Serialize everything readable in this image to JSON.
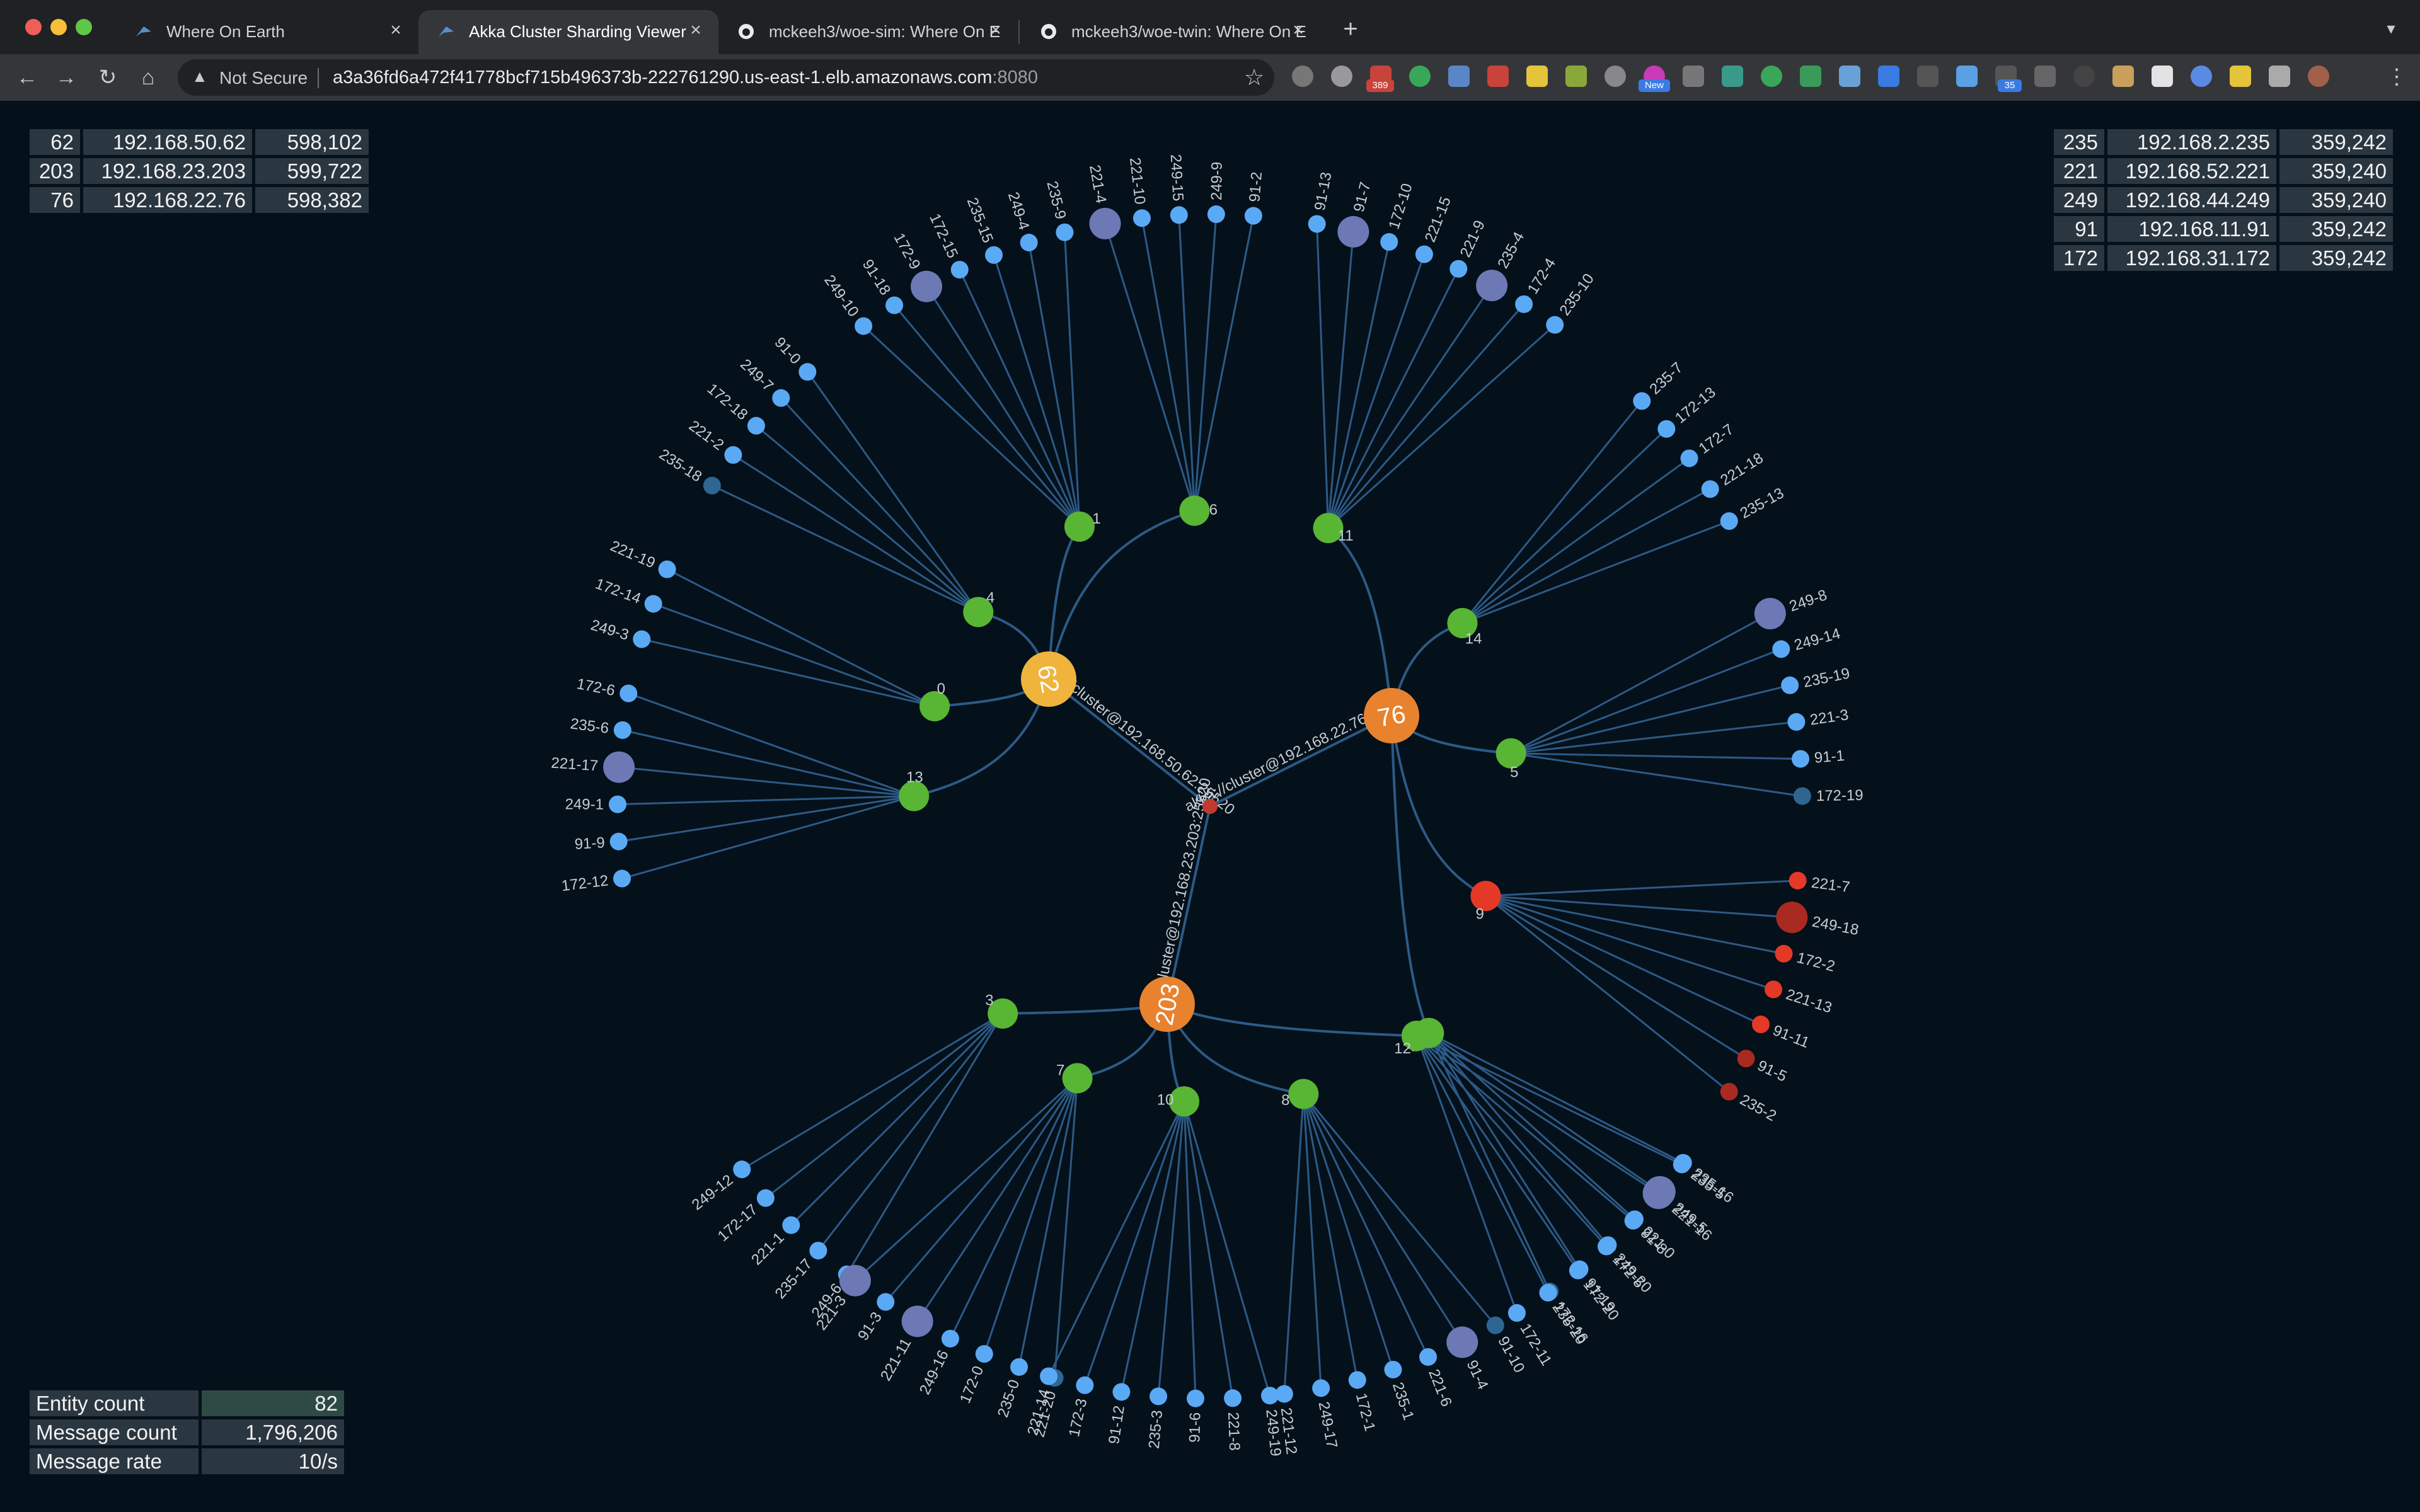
{
  "browser": {
    "tabs": [
      {
        "title": "Where On Earth",
        "active": false,
        "icon": "akka-icon"
      },
      {
        "title": "Akka Cluster Sharding Viewer",
        "active": true,
        "icon": "akka-icon"
      },
      {
        "title": "mckeeh3/woe-sim: Where On E",
        "active": false,
        "icon": "github-icon"
      },
      {
        "title": "mckeeh3/woe-twin: Where On E",
        "active": false,
        "icon": "github-icon"
      }
    ],
    "security": "Not Secure",
    "url_host": "a3a36fd6a472f41778bcf715b496373b-222761290.us-east-1.elb.amazonaws.com",
    "url_port": ":8080",
    "badges": {
      "mail": "389",
      "new": "New",
      "count": "35"
    }
  },
  "colors": {
    "leaf": "#5aa9f5",
    "leaf_dim": "#2e6691",
    "leaf_busy": "#6c79b4",
    "shard": "#59b534",
    "red": "#e53928",
    "red_dark": "#a82a20",
    "node62": "#f0b33c",
    "node76": "#e8822f",
    "node203": "#e8822f",
    "link": "#2c5a86"
  },
  "nodes_left": [
    {
      "id": "62",
      "ip": "192.168.50.62",
      "count": "598,102"
    },
    {
      "id": "203",
      "ip": "192.168.23.203",
      "count": "599,722"
    },
    {
      "id": "76",
      "ip": "192.168.22.76",
      "count": "598,382"
    }
  ],
  "nodes_right": [
    {
      "id": "235",
      "ip": "192.168.2.235",
      "count": "359,242"
    },
    {
      "id": "221",
      "ip": "192.168.52.221",
      "count": "359,240"
    },
    {
      "id": "249",
      "ip": "192.168.44.249",
      "count": "359,240"
    },
    {
      "id": "91",
      "ip": "192.168.11.91",
      "count": "359,242"
    },
    {
      "id": "172",
      "ip": "192.168.31.172",
      "count": "359,242"
    }
  ],
  "stats": [
    {
      "label": "Entity count",
      "value": "82"
    },
    {
      "label": "Message count",
      "value": "1,796,206"
    },
    {
      "label": "Message rate",
      "value": "10/s"
    }
  ],
  "graph": {
    "links": [
      "akka://cluster@192.168.50.62:25520",
      "akka://cluster@192.168.22.76:25520",
      "akka://cluster@192.168.23.203:25520"
    ],
    "cluster_nodes": [
      {
        "label": "62",
        "kind": "node62",
        "shards": [
          {
            "label": "1",
            "entities": [
              "249-10",
              "91-18",
              "172-9",
              "172-15",
              "235-15",
              "249-4",
              "235-9"
            ],
            "busy": [
              "172-9"
            ]
          },
          {
            "label": "6",
            "entities": [
              "221-4",
              "221-10",
              "249-15",
              "249-9",
              "91-2"
            ],
            "busy": [
              "221-4"
            ]
          },
          {
            "label": "4",
            "entities": [
              "235-18",
              "221-2",
              "172-18",
              "249-7",
              "91-0"
            ],
            "dim": [
              "235-18"
            ]
          },
          {
            "label": "0",
            "entities": [
              "249-3",
              "172-14",
              "221-19"
            ]
          },
          {
            "label": "13",
            "entities": [
              "172-12",
              "91-9",
              "249-1",
              "221-17",
              "235-6",
              "172-6"
            ],
            "busy": [
              "221-17"
            ]
          }
        ]
      },
      {
        "label": "76",
        "kind": "node76",
        "shards": [
          {
            "label": "11",
            "entities": [
              "91-13",
              "91-7",
              "172-10",
              "221-15",
              "221-9",
              "235-4",
              "172-4",
              "235-10"
            ],
            "busy": [
              "91-7",
              "235-4"
            ]
          },
          {
            "label": "14",
            "entities": [
              "235-7",
              "172-13",
              "172-7",
              "221-18",
              "235-13"
            ]
          },
          {
            "label": "5",
            "entities": [
              "249-8",
              "249-14",
              "235-19",
              "221-3",
              "91-1",
              "172-19"
            ],
            "busy": [
              "249-8"
            ],
            "dim": [
              "172-19"
            ]
          },
          {
            "label": "9",
            "entities": [
              "221-7",
              "249-18",
              "172-2",
              "221-13",
              "91-11",
              "91-5",
              "235-2"
            ],
            "red": true
          },
          {
            "label": "2",
            "entities": [
              "235-16",
              "249-5",
              "221-0",
              "249-20",
              "91-19",
              "172-16"
            ],
            "busy": [
              "249-5"
            ],
            "dim": [
              "172-16"
            ]
          }
        ]
      },
      {
        "label": "203",
        "kind": "node203",
        "shards": [
          {
            "label": "3",
            "entities": [
              "249-6",
              "235-17",
              "221-1",
              "172-17",
              "249-12"
            ]
          },
          {
            "label": "7",
            "entities": [
              "221-20",
              "235-0",
              "172-0",
              "249-16",
              "221-11",
              "91-3",
              "221-3"
            ],
            "busy": [
              "221-11",
              "221-3"
            ],
            "dim": [
              "221-20"
            ]
          },
          {
            "label": "10",
            "entities": [
              "249-19",
              "221-8",
              "91-6",
              "235-3",
              "91-12",
              "172-3",
              "221-14"
            ]
          },
          {
            "label": "8",
            "entities": [
              "91-10",
              "91-4",
              "221-6",
              "235-1",
              "172-1",
              "249-17",
              "221-12"
            ],
            "busy": [
              "91-4"
            ],
            "dim": [
              "91-10"
            ]
          },
          {
            "label": "12",
            "entities": [
              "235-5",
              "221-16",
              "91-8",
              "172-5",
              "172-20",
              "235-20",
              "172-11"
            ],
            "busy": [
              "221-16"
            ]
          }
        ]
      }
    ]
  }
}
